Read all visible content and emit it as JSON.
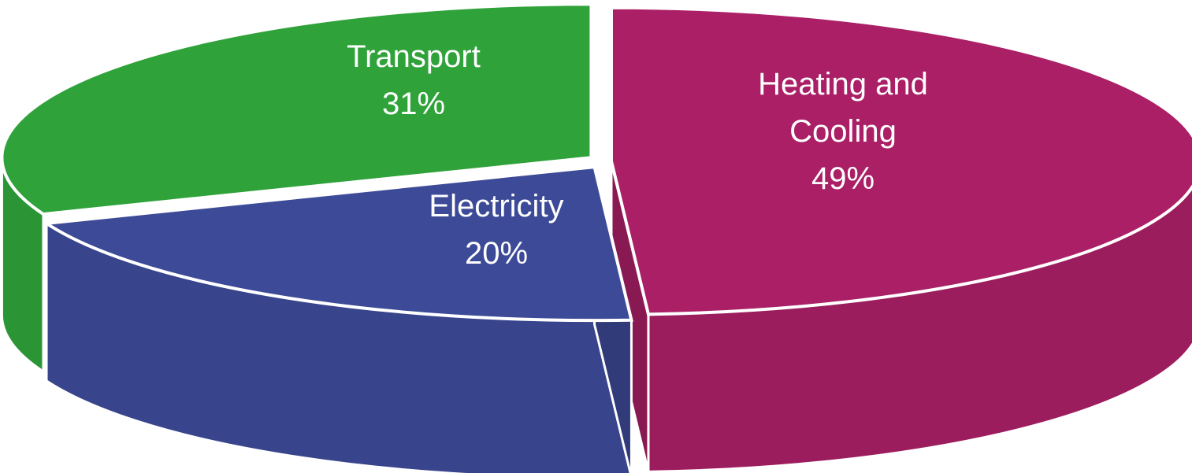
{
  "chart_data": {
    "type": "pie",
    "categories": [
      "Heating and Cooling",
      "Electricity",
      "Transport"
    ],
    "values": [
      49,
      20,
      31
    ],
    "value_labels": [
      "49%",
      "20%",
      "31%"
    ],
    "label_lines": [
      [
        "Heating and",
        "Cooling"
      ],
      [
        "Electricity"
      ],
      [
        "Transport"
      ]
    ],
    "colors": [
      "#aa1f66",
      "#3d4a97",
      "#2fa23a"
    ],
    "style": "3d-exploded",
    "legend": "none",
    "title": ""
  }
}
